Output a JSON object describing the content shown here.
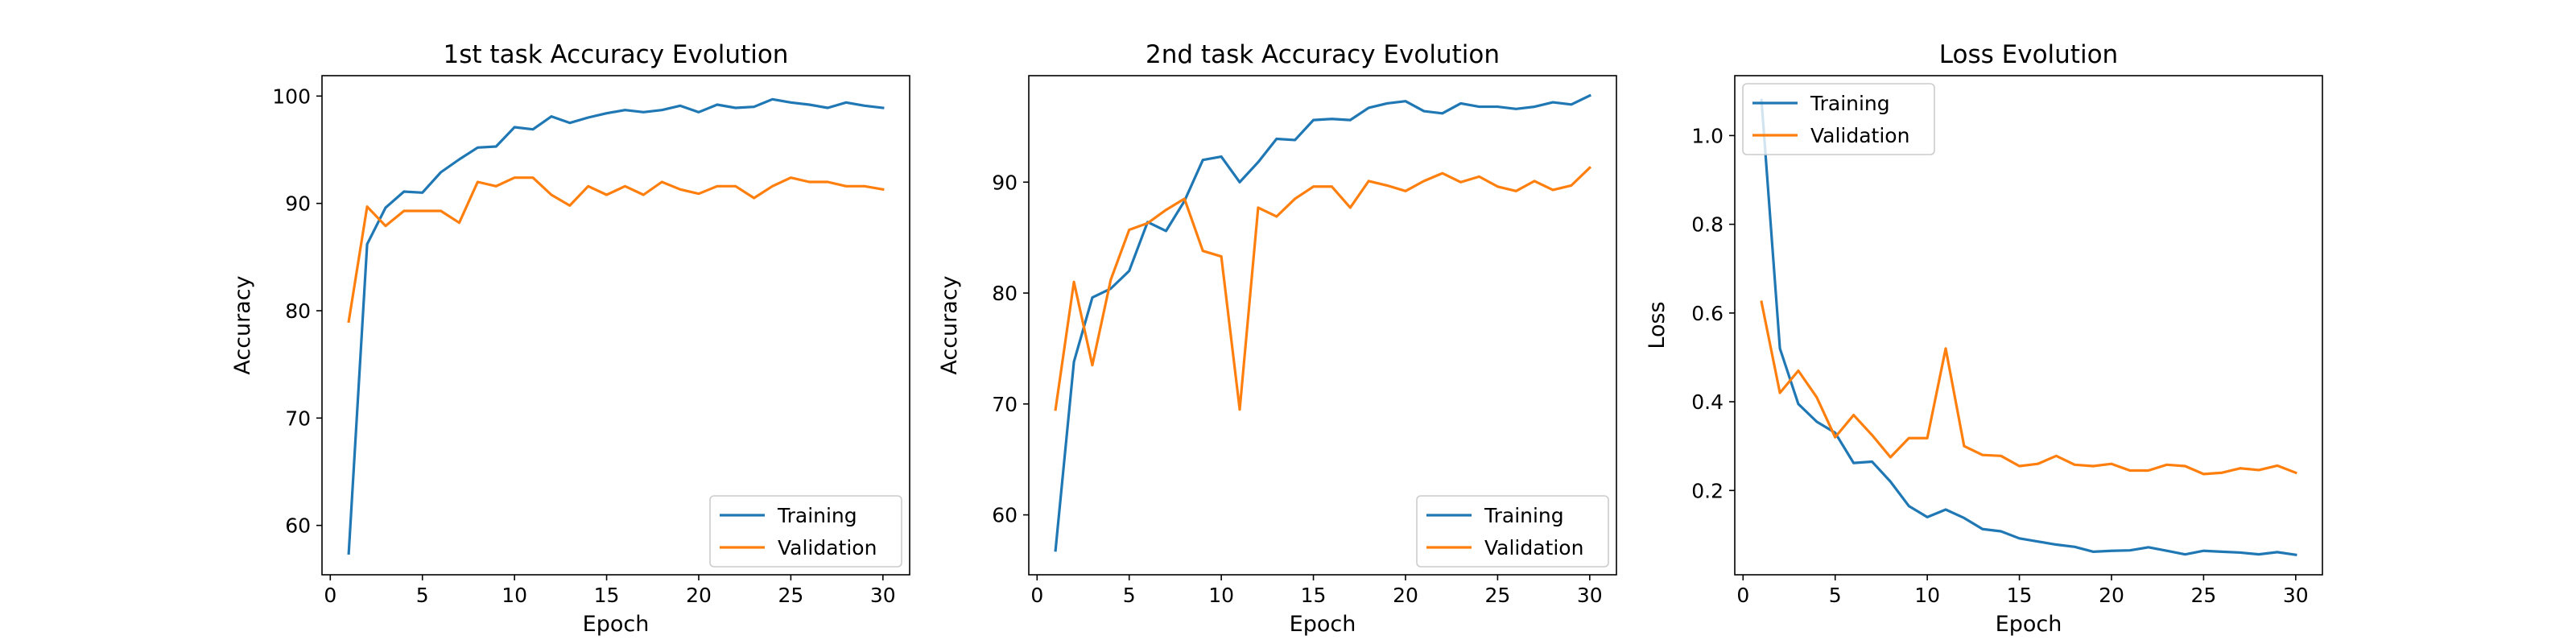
{
  "chart_data": [
    {
      "type": "line",
      "title": "1st task Accuracy Evolution",
      "xlabel": "Epoch",
      "ylabel": "Accuracy",
      "xlim": [
        -0.45,
        31.45
      ],
      "ylim": [
        55.4,
        101.9
      ],
      "xticks": [
        0,
        5,
        10,
        15,
        20,
        25,
        30
      ],
      "yticks": [
        60,
        70,
        80,
        90,
        100
      ],
      "legend": "lower-right",
      "series": [
        {
          "name": "Training",
          "color": "#1f77b4",
          "x": [
            1,
            2,
            3,
            4,
            5,
            6,
            7,
            8,
            9,
            10,
            11,
            12,
            13,
            14,
            15,
            16,
            17,
            18,
            19,
            20,
            21,
            22,
            23,
            24,
            25,
            26,
            27,
            28,
            29,
            30
          ],
          "values": [
            57.4,
            86.2,
            89.6,
            91.1,
            91.0,
            92.9,
            94.1,
            95.2,
            95.3,
            97.1,
            96.9,
            98.1,
            97.5,
            98.0,
            98.4,
            98.7,
            98.5,
            98.7,
            99.1,
            98.5,
            99.2,
            98.9,
            99.0,
            99.7,
            99.4,
            99.2,
            98.9,
            99.4,
            99.1,
            98.9
          ]
        },
        {
          "name": "Validation",
          "color": "#ff7f0e",
          "x": [
            1,
            2,
            3,
            4,
            5,
            6,
            7,
            8,
            9,
            10,
            11,
            12,
            13,
            14,
            15,
            16,
            17,
            18,
            19,
            20,
            21,
            22,
            23,
            24,
            25,
            26,
            27,
            28,
            29,
            30
          ],
          "values": [
            79.0,
            89.7,
            87.9,
            89.3,
            89.3,
            89.3,
            88.2,
            92.0,
            91.6,
            92.4,
            92.4,
            90.8,
            89.8,
            91.6,
            90.8,
            91.6,
            90.8,
            92.0,
            91.3,
            90.9,
            91.6,
            91.6,
            90.5,
            91.6,
            92.4,
            92.0,
            92.0,
            91.6,
            91.6,
            91.3
          ]
        }
      ]
    },
    {
      "type": "line",
      "title": "2nd task Accuracy Evolution",
      "xlabel": "Epoch",
      "ylabel": "Accuracy",
      "xlim": [
        -0.45,
        31.45
      ],
      "ylim": [
        54.6,
        99.6
      ],
      "xticks": [
        0,
        5,
        10,
        15,
        20,
        25,
        30
      ],
      "yticks": [
        60,
        70,
        80,
        90
      ],
      "legend": "lower-right",
      "series": [
        {
          "name": "Training",
          "color": "#1f77b4",
          "x": [
            1,
            2,
            3,
            4,
            5,
            6,
            7,
            8,
            9,
            10,
            11,
            12,
            13,
            14,
            15,
            16,
            17,
            18,
            19,
            20,
            21,
            22,
            23,
            24,
            25,
            26,
            27,
            28,
            29,
            30
          ],
          "values": [
            56.8,
            73.8,
            79.6,
            80.4,
            82.0,
            86.4,
            85.6,
            88.3,
            92.0,
            92.3,
            90.0,
            91.8,
            93.9,
            93.8,
            95.6,
            95.7,
            95.6,
            96.7,
            97.1,
            97.3,
            96.4,
            96.2,
            97.1,
            96.8,
            96.8,
            96.6,
            96.8,
            97.2,
            97.0,
            97.8
          ]
        },
        {
          "name": "Validation",
          "color": "#ff7f0e",
          "x": [
            1,
            2,
            3,
            4,
            5,
            6,
            7,
            8,
            9,
            10,
            11,
            12,
            13,
            14,
            15,
            16,
            17,
            18,
            19,
            20,
            21,
            22,
            23,
            24,
            25,
            26,
            27,
            28,
            29,
            30
          ],
          "values": [
            69.5,
            81.0,
            73.5,
            81.2,
            85.7,
            86.3,
            87.5,
            88.5,
            83.8,
            83.3,
            69.5,
            87.7,
            86.9,
            88.5,
            89.6,
            89.6,
            87.7,
            90.1,
            89.7,
            89.2,
            90.1,
            90.8,
            90.0,
            90.5,
            89.6,
            89.2,
            90.1,
            89.3,
            89.7,
            91.3
          ]
        }
      ]
    },
    {
      "type": "line",
      "title": "Loss Evolution",
      "xlabel": "Epoch",
      "ylabel": "Loss",
      "xlim": [
        -0.45,
        31.45
      ],
      "ylim": [
        0.01,
        1.135
      ],
      "xticks": [
        0,
        5,
        10,
        15,
        20,
        25,
        30
      ],
      "yticks": [
        0.2,
        0.4,
        0.6,
        0.8,
        1.0
      ],
      "legend": "upper-left",
      "series": [
        {
          "name": "Training",
          "color": "#1f77b4",
          "x": [
            1,
            2,
            3,
            4,
            5,
            6,
            7,
            8,
            9,
            10,
            11,
            12,
            13,
            14,
            15,
            16,
            17,
            18,
            19,
            20,
            21,
            22,
            23,
            24,
            25,
            26,
            27,
            28,
            29,
            30
          ],
          "values": [
            1.08,
            0.52,
            0.395,
            0.355,
            0.33,
            0.262,
            0.265,
            0.22,
            0.165,
            0.14,
            0.157,
            0.138,
            0.113,
            0.108,
            0.092,
            0.085,
            0.078,
            0.073,
            0.062,
            0.064,
            0.065,
            0.072,
            0.064,
            0.056,
            0.064,
            0.062,
            0.06,
            0.056,
            0.061,
            0.055
          ]
        },
        {
          "name": "Validation",
          "color": "#ff7f0e",
          "x": [
            1,
            2,
            3,
            4,
            5,
            6,
            7,
            8,
            9,
            10,
            11,
            12,
            13,
            14,
            15,
            16,
            17,
            18,
            19,
            20,
            21,
            22,
            23,
            24,
            25,
            26,
            27,
            28,
            29,
            30
          ],
          "values": [
            0.625,
            0.42,
            0.47,
            0.41,
            0.32,
            0.37,
            0.325,
            0.275,
            0.318,
            0.318,
            0.52,
            0.3,
            0.28,
            0.278,
            0.255,
            0.26,
            0.278,
            0.258,
            0.255,
            0.26,
            0.245,
            0.245,
            0.258,
            0.255,
            0.237,
            0.24,
            0.25,
            0.246,
            0.256,
            0.24
          ]
        }
      ]
    }
  ]
}
